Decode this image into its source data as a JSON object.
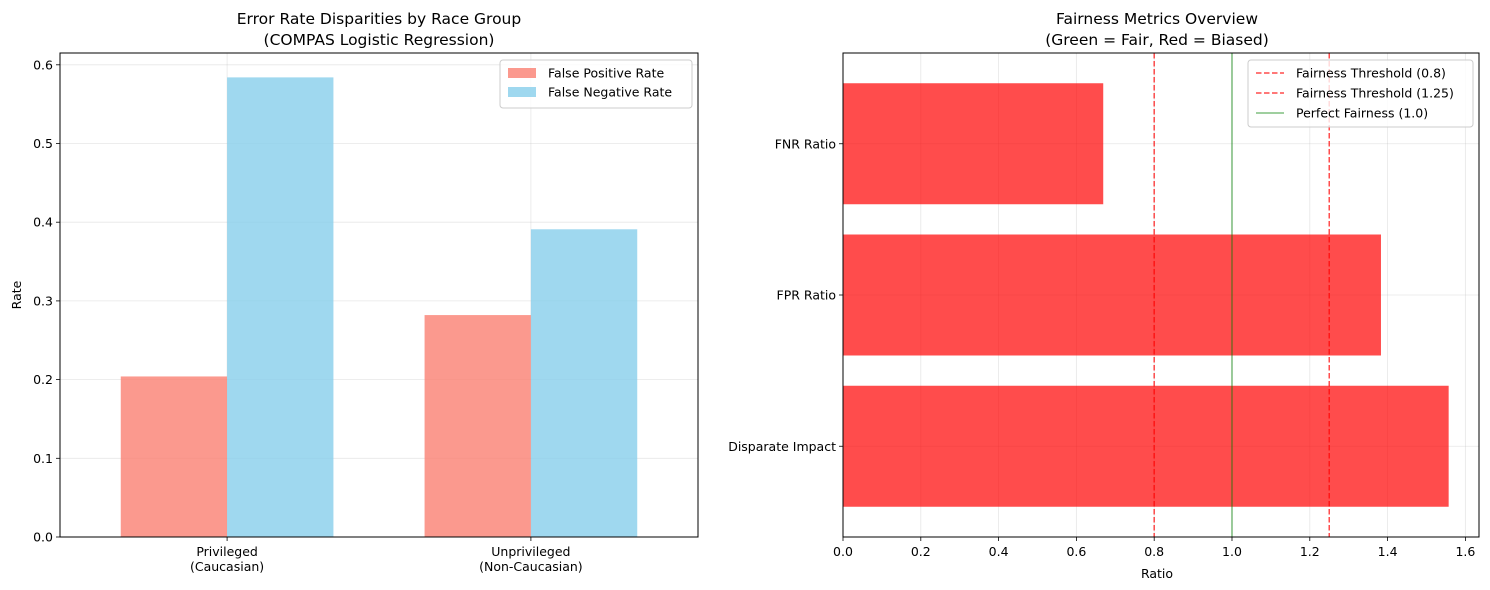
{
  "chart_data": [
    {
      "type": "bar",
      "title": "Error Rate Disparities by Race Group",
      "subtitle": "(COMPAS Logistic Regression)",
      "xlabel": "",
      "ylabel": "Rate",
      "categories": [
        [
          "Privileged",
          "(Caucasian)"
        ],
        [
          "Unprivileged",
          "(Non-Caucasian)"
        ]
      ],
      "series": [
        {
          "name": "False Positive Rate",
          "color": "#fa8072",
          "values": [
            0.204,
            0.282
          ]
        },
        {
          "name": "False Negative Rate",
          "color": "#87ceeb",
          "values": [
            0.584,
            0.391
          ]
        }
      ],
      "ylim": [
        0,
        0.615
      ],
      "yticks": [
        0.0,
        0.1,
        0.2,
        0.3,
        0.4,
        0.5,
        0.6
      ],
      "ytick_labels": [
        "0.0",
        "0.1",
        "0.2",
        "0.3",
        "0.4",
        "0.5",
        "0.6"
      ],
      "grid": true,
      "legend_position": "top-right"
    },
    {
      "type": "barh",
      "title": "Fairness Metrics Overview",
      "subtitle": "(Green = Fair, Red = Biased)",
      "xlabel": "Ratio",
      "ylabel": "",
      "categories": [
        "Disparate Impact",
        "FPR Ratio",
        "FNR Ratio"
      ],
      "values": [
        1.557,
        1.383,
        0.669
      ],
      "bar_color": "#ff0000",
      "xlim": [
        0,
        1.635
      ],
      "xticks": [
        0.0,
        0.2,
        0.4,
        0.6,
        0.8,
        1.0,
        1.2,
        1.4,
        1.6
      ],
      "xtick_labels": [
        "0.0",
        "0.2",
        "0.4",
        "0.6",
        "0.8",
        "1.0",
        "1.2",
        "1.4",
        "1.6"
      ],
      "reference_lines": [
        {
          "name": "Fairness Threshold (0.8)",
          "x": 0.8,
          "color": "#ff0000",
          "style": "dashed"
        },
        {
          "name": "Fairness Threshold (1.25)",
          "x": 1.25,
          "color": "#ff0000",
          "style": "dashed"
        },
        {
          "name": "Perfect Fairness (1.0)",
          "x": 1.0,
          "color": "#008000",
          "style": "solid"
        }
      ],
      "grid": true,
      "legend_position": "top-right"
    }
  ]
}
